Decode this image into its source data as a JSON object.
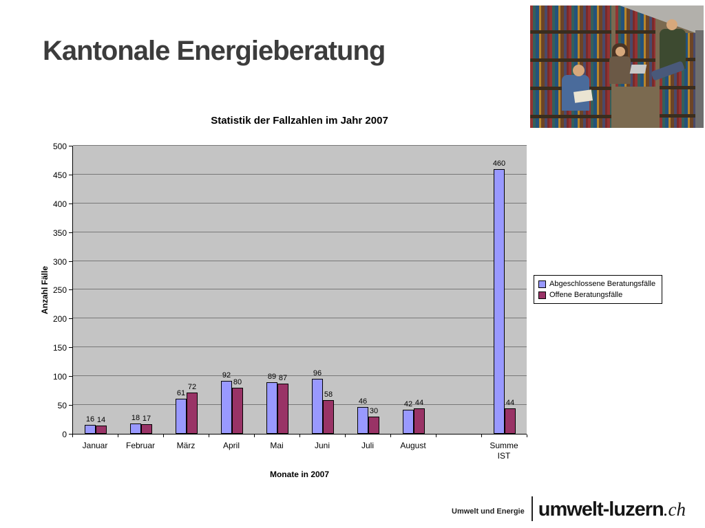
{
  "slide": {
    "title": "Kantonale Energieberatung",
    "footer": {
      "org": "Umwelt und Energie",
      "brand": "umwelt-luzern",
      "tld": ".ch"
    }
  },
  "chart_data": {
    "type": "bar",
    "title": "Statistik der Fallzahlen im Jahr 2007",
    "xlabel": "Monate in 2007",
    "ylabel": "Anzahl Fälle",
    "ylim": [
      0,
      500
    ],
    "ytick_step": 50,
    "grid": true,
    "legend_position": "right",
    "plot_bg": "#c4c4c4",
    "gap_before_last_category": true,
    "value_labels": true,
    "categories": [
      "Januar",
      "Februar",
      "März",
      "April",
      "Mai",
      "Juni",
      "Juli",
      "August",
      "Summe\nIST"
    ],
    "series": [
      {
        "name": "Abgeschlossene Beratungsfälle",
        "color": "#9999ff",
        "values": [
          16,
          18,
          61,
          92,
          89,
          96,
          46,
          42,
          460
        ]
      },
      {
        "name": "Offene Beratungsfälle",
        "color": "#993366",
        "values": [
          14,
          17,
          72,
          80,
          87,
          58,
          30,
          44,
          44
        ]
      }
    ]
  }
}
